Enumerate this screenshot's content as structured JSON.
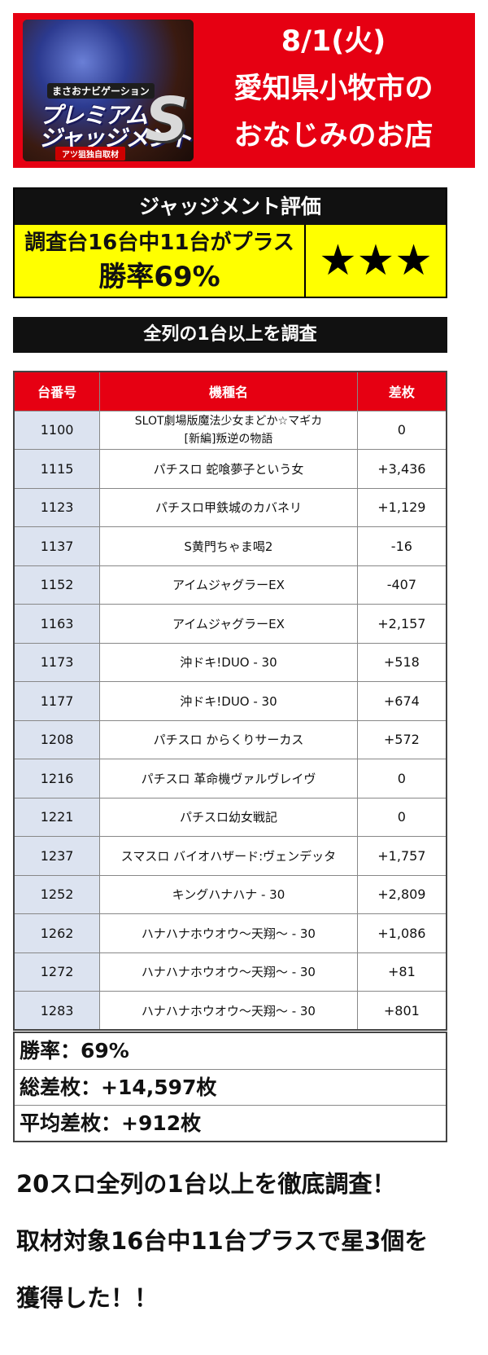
{
  "banner": {
    "logo_sub": "まさおナビゲーション",
    "logo_title_1": "プレミアム",
    "logo_title_2": "ジャッジメント",
    "logo_s": "S",
    "logo_tag": "アツ狙独自取材",
    "line1": "8/1(火)",
    "line2": "愛知県小牧市の",
    "line3": "おなじみのお店",
    "color": "#e60012"
  },
  "judgement": {
    "header": "ジャッジメント評価",
    "line1": "調査台16台中11台がプラス",
    "line2": "勝率69%",
    "stars": "★★★",
    "highlight_color": "#ffff00"
  },
  "section": {
    "title": "全列の1台以上を調査"
  },
  "table": {
    "headers": [
      "台番号",
      "機種名",
      "差枚"
    ],
    "rows": [
      {
        "num": "1100",
        "name": "SLOT劇場版魔法少女まどか☆マギカ",
        "name2": "[新編]叛逆の物語",
        "diff": "0"
      },
      {
        "num": "1115",
        "name": "パチスロ 蛇喰夢子という女",
        "diff": "+3,436"
      },
      {
        "num": "1123",
        "name": "パチスロ甲鉄城のカバネリ",
        "diff": "+1,129"
      },
      {
        "num": "1137",
        "name": "S黄門ちゃま喝2",
        "diff": "-16"
      },
      {
        "num": "1152",
        "name": "アイムジャグラーEX",
        "diff": "-407"
      },
      {
        "num": "1163",
        "name": "アイムジャグラーEX",
        "diff": "+2,157"
      },
      {
        "num": "1173",
        "name": "沖ドキ!DUO - 30",
        "diff": "+518"
      },
      {
        "num": "1177",
        "name": "沖ドキ!DUO - 30",
        "diff": "+674"
      },
      {
        "num": "1208",
        "name": "パチスロ からくりサーカス",
        "diff": "+572"
      },
      {
        "num": "1216",
        "name": "パチスロ 革命機ヴァルヴレイヴ",
        "diff": "0"
      },
      {
        "num": "1221",
        "name": "パチスロ幼女戦記",
        "diff": "0"
      },
      {
        "num": "1237",
        "name": "スマスロ バイオハザード:ヴェンデッタ",
        "diff": "+1,757"
      },
      {
        "num": "1252",
        "name": "キングハナハナ - 30",
        "diff": "+2,809"
      },
      {
        "num": "1262",
        "name": "ハナハナホウオウ～天翔～ - 30",
        "diff": "+1,086"
      },
      {
        "num": "1272",
        "name": "ハナハナホウオウ～天翔～ - 30",
        "diff": "+81"
      },
      {
        "num": "1283",
        "name": "ハナハナホウオウ～天翔～ - 30",
        "diff": "+801"
      }
    ]
  },
  "summary": {
    "win_rate": "勝率：69%",
    "total": "総差枚：+14,597枚",
    "average": "平均差枚：+912枚"
  },
  "footer": {
    "line1": "20スロ全列の1台以上を徹底調査！",
    "line2": "取材対象16台中11台プラスで星3個を",
    "line3": "獲得した！！"
  }
}
